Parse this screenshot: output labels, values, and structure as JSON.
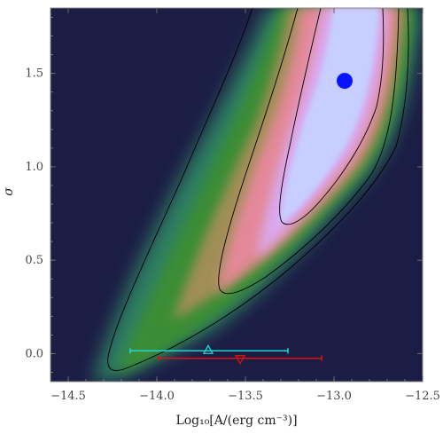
{
  "chart_data": {
    "type": "heatmap",
    "xlabel": "Log₁₀[A/(erg cm⁻³)]",
    "ylabel": "σ",
    "xlim": [
      -14.6,
      -12.5
    ],
    "ylim": [
      -0.15,
      1.85
    ],
    "grid": false,
    "x_ticks": [
      -14.5,
      -14.0,
      -13.5,
      -13.0,
      -12.5
    ],
    "x_tick_labels": [
      "−14.5",
      "−14.0",
      "−13.5",
      "−13.0",
      "−12.5"
    ],
    "y_ticks": [
      0.0,
      0.5,
      1.0,
      1.5
    ],
    "y_tick_labels": [
      "0.0",
      "0.5",
      "1.0",
      "1.5"
    ],
    "best_fit_point": {
      "x": -12.94,
      "y": 1.46,
      "color": "#0a14ff"
    },
    "error_bars": [
      {
        "name": "",
        "marker": "triangle-up",
        "color": "#22d4d4",
        "x": -13.71,
        "y": 0.015,
        "xmin": -14.15,
        "xmax": -13.26
      },
      {
        "name": "",
        "marker": "triangle-down",
        "color": "#e01010",
        "x": -13.53,
        "y": -0.025,
        "xmin": -13.99,
        "xmax": -13.07
      }
    ],
    "colormap": [
      "#1c1d44",
      "#2a6f73",
      "#2f8f3a",
      "#9a9a4c",
      "#e07f8e",
      "#e3a0ea",
      "#c8d2ff"
    ],
    "contour_levels": 4
  }
}
